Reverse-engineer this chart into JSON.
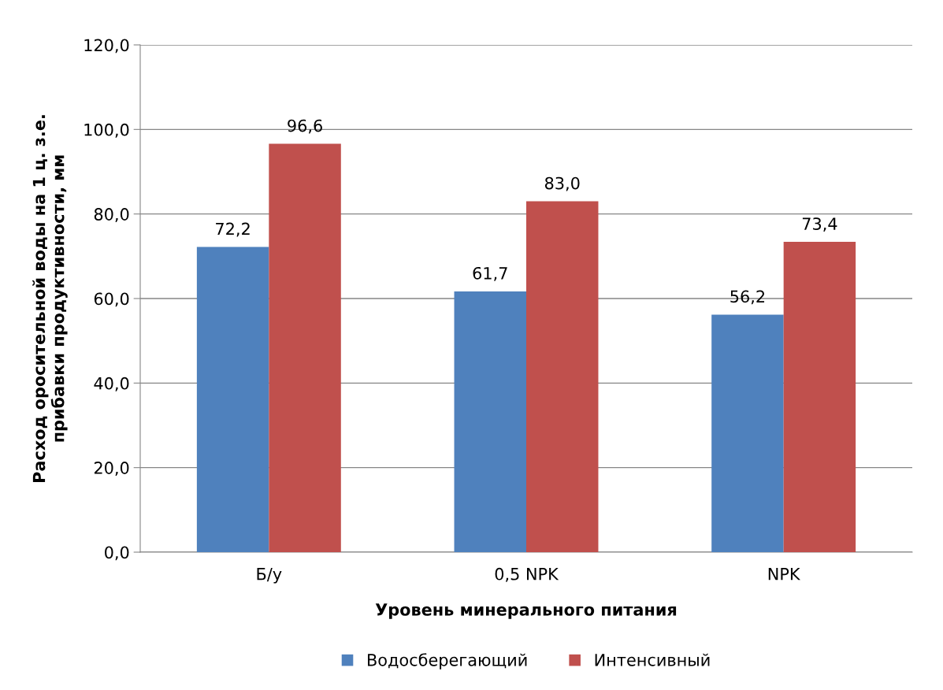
{
  "chart_data": {
    "type": "bar",
    "xlabel": "Уровень минерального питания",
    "ylabel": "Расход оросительной воды на 1 ц. з.е.\nприбавки продуктивности, мм",
    "categories": [
      "Б/у",
      "0,5 NPK",
      "NPK"
    ],
    "series": [
      {
        "name": "Водосберегающий",
        "color": "#4f81bd",
        "values": [
          72.2,
          61.7,
          56.2
        ],
        "value_labels": [
          "72,2",
          "61,7",
          "56,2"
        ]
      },
      {
        "name": "Интенсивный",
        "color": "#c0504d",
        "values": [
          96.6,
          83.0,
          73.4
        ],
        "value_labels": [
          "96,6",
          "83,0",
          "73,4"
        ]
      }
    ],
    "ylim": [
      0,
      120
    ],
    "yticks": [
      {
        "value": 0,
        "label": "0,0"
      },
      {
        "value": 20,
        "label": "20,0"
      },
      {
        "value": 40,
        "label": "40,0"
      },
      {
        "value": 60,
        "label": "60,0"
      },
      {
        "value": 80,
        "label": "80,0"
      },
      {
        "value": 100,
        "label": "100,0"
      },
      {
        "value": 120,
        "label": "120,0"
      }
    ],
    "grid": "y",
    "legend": "bottom"
  }
}
